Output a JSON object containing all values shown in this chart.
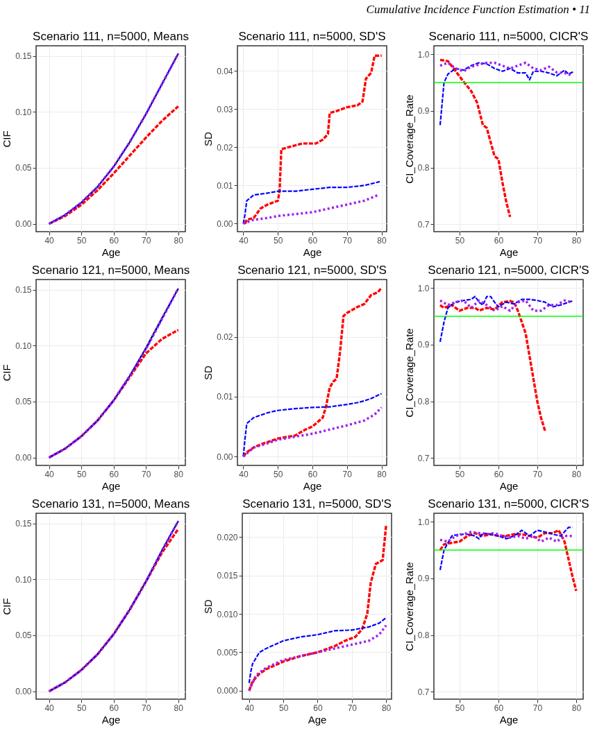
{
  "chart_data": [
    {
      "type": "line",
      "title": "Scenario 111, n=5000, Means",
      "xlabel": "Age",
      "ylabel": "CIF",
      "annotations": [
        "Cumulative Incidence Function Estimation • 11"
      ],
      "xlim": [
        36,
        82.2
      ],
      "xticks": [
        40,
        50,
        60,
        70,
        80
      ],
      "ylim": [
        -0.007,
        0.159
      ],
      "yticks": [
        {
          "value": 0,
          "label": "0.00"
        },
        {
          "value": 0.05,
          "label": "0.05"
        },
        {
          "value": 0.1,
          "label": "0.10"
        },
        {
          "value": 0.15,
          "label": "0.15"
        }
      ],
      "grid": true,
      "series": [
        {
          "color": "#000000",
          "line_style": "solid",
          "x": [
            40,
            45,
            50,
            55,
            60,
            65,
            70,
            75,
            80
          ],
          "values": [
            0,
            0.008,
            0.019,
            0.033,
            0.051,
            0.073,
            0.098,
            0.125,
            0.152
          ]
        },
        {
          "color": "#0000ff",
          "line_style": "dashed",
          "x": [
            40,
            45,
            50,
            55,
            60,
            65,
            70,
            75,
            80
          ],
          "values": [
            0,
            0.008,
            0.019,
            0.033,
            0.051,
            0.073,
            0.098,
            0.125,
            0.152
          ]
        },
        {
          "color": "#a020f0",
          "line_style": "dotted",
          "x": [
            40,
            45,
            50,
            55,
            60,
            65,
            70,
            75,
            80
          ],
          "values": [
            0,
            0.008,
            0.019,
            0.033,
            0.051,
            0.073,
            0.098,
            0.125,
            0.152
          ]
        },
        {
          "color": "#ff0000",
          "line_style": "dashed",
          "x": [
            40,
            45,
            50,
            55,
            60,
            65,
            70,
            75,
            80
          ],
          "values": [
            0,
            0.007,
            0.017,
            0.03,
            0.045,
            0.061,
            0.077,
            0.092,
            0.105
          ]
        }
      ]
    },
    {
      "type": "line",
      "title": "Scenario 111, n=5000, SD'S",
      "xlabel": "Age",
      "ylabel": "SD",
      "xlim": [
        38.3,
        81.5
      ],
      "xticks": [
        40,
        50,
        60,
        70,
        80
      ],
      "ylim": [
        -0.0021,
        0.0466
      ],
      "yticks": [
        {
          "value": 0,
          "label": "0.00"
        },
        {
          "value": 0.01,
          "label": "0.01"
        },
        {
          "value": 0.02,
          "label": "0.02"
        },
        {
          "value": 0.03,
          "label": "0.03"
        },
        {
          "value": 0.04,
          "label": "0.04"
        }
      ],
      "grid": true,
      "series": [
        {
          "color": "#0000ff",
          "line_style": "dashed",
          "x": [
            40,
            40.5,
            41,
            43,
            47,
            50,
            55,
            60,
            65,
            70,
            75,
            79.5
          ],
          "values": [
            0,
            0.0025,
            0.006,
            0.0075,
            0.008,
            0.0085,
            0.0085,
            0.009,
            0.0095,
            0.0095,
            0.01,
            0.011
          ]
        },
        {
          "color": "#a020f0",
          "line_style": "dotted",
          "x": [
            40,
            43,
            47,
            50,
            55,
            60,
            65,
            70,
            75,
            79
          ],
          "values": [
            0,
            0.001,
            0.0015,
            0.002,
            0.0025,
            0.003,
            0.004,
            0.005,
            0.006,
            0.0075
          ]
        },
        {
          "color": "#ff0000",
          "line_style": "dashed",
          "x": [
            40.5,
            41,
            43,
            45,
            47,
            50,
            50.5,
            51,
            53,
            57,
            61,
            63,
            64.5,
            65,
            67,
            70,
            73,
            74.5,
            75.5,
            77,
            78,
            80
          ],
          "values": [
            0,
            0.001,
            0.0015,
            0.004,
            0.005,
            0.006,
            0.0085,
            0.0195,
            0.02,
            0.021,
            0.021,
            0.022,
            0.0235,
            0.029,
            0.0295,
            0.0305,
            0.031,
            0.032,
            0.038,
            0.0395,
            0.044,
            0.044
          ]
        }
      ]
    },
    {
      "type": "line",
      "title": "Scenario 111, n=5000, CICR'S",
      "xlabel": "Age",
      "ylabel": "CI_Coverage_Rate",
      "xlim": [
        43.4,
        81.8
      ],
      "xticks": [
        50,
        60,
        70,
        80
      ],
      "ylim": [
        0.687,
        1.015
      ],
      "yticks": [
        {
          "value": 0.7,
          "label": "0.7"
        },
        {
          "value": 0.8,
          "label": "0.8"
        },
        {
          "value": 0.9,
          "label": "0.9"
        },
        {
          "value": 1,
          "label": "1.0"
        }
      ],
      "grid": true,
      "ref_lines": [
        {
          "axis": "y",
          "value": 0.95,
          "label": null,
          "color": "#00ff00"
        }
      ],
      "series": [
        {
          "color": "#0000ff",
          "line_style": "dashed",
          "x": [
            45,
            46,
            47,
            49,
            51,
            53,
            55,
            57,
            59,
            61,
            63,
            65,
            67,
            68,
            69,
            71,
            73,
            75,
            77,
            78,
            79.5
          ],
          "values": [
            0.875,
            0.95,
            0.965,
            0.975,
            0.972,
            0.98,
            0.985,
            0.983,
            0.975,
            0.97,
            0.975,
            0.967,
            0.967,
            0.955,
            0.97,
            0.97,
            0.967,
            0.962,
            0.972,
            0.965,
            0.97
          ]
        },
        {
          "color": "#a020f0",
          "line_style": "dotted",
          "x": [
            45,
            47,
            49,
            51,
            53,
            55,
            57,
            59,
            61,
            63,
            65,
            67,
            69,
            71,
            73,
            75,
            77,
            78,
            79
          ],
          "values": [
            0.98,
            0.985,
            0.975,
            0.97,
            0.978,
            0.982,
            0.985,
            0.985,
            0.98,
            0.975,
            0.98,
            0.985,
            0.975,
            0.972,
            0.978,
            0.968,
            0.967,
            0.965,
            0.962
          ]
        },
        {
          "color": "#ff0000",
          "line_style": "dashed",
          "x": [
            45,
            47,
            49,
            51,
            53,
            54.5,
            56,
            57,
            59,
            60,
            61,
            62,
            63
          ],
          "values": [
            0.99,
            0.988,
            0.97,
            0.952,
            0.935,
            0.915,
            0.875,
            0.87,
            0.82,
            0.815,
            0.775,
            0.74,
            0.713
          ]
        }
      ]
    },
    {
      "type": "line",
      "title": "Scenario 121, n=5000, Means",
      "xlabel": "Age",
      "ylabel": "CIF",
      "xlim": [
        36,
        82.2
      ],
      "xticks": [
        40,
        50,
        60,
        70,
        80
      ],
      "ylim": [
        -0.007,
        0.159
      ],
      "yticks": [
        {
          "value": 0,
          "label": "0.00"
        },
        {
          "value": 0.05,
          "label": "0.05"
        },
        {
          "value": 0.1,
          "label": "0.10"
        },
        {
          "value": 0.15,
          "label": "0.15"
        }
      ],
      "grid": true,
      "series": [
        {
          "color": "#000000",
          "line_style": "solid",
          "x": [
            40,
            45,
            50,
            55,
            60,
            65,
            70,
            75,
            80
          ],
          "values": [
            0,
            0.008,
            0.019,
            0.033,
            0.051,
            0.073,
            0.098,
            0.125,
            0.151
          ]
        },
        {
          "color": "#0000ff",
          "line_style": "dashed",
          "x": [
            40,
            45,
            50,
            55,
            60,
            65,
            70,
            75,
            80
          ],
          "values": [
            0,
            0.008,
            0.019,
            0.033,
            0.051,
            0.073,
            0.097,
            0.124,
            0.151
          ]
        },
        {
          "color": "#a020f0",
          "line_style": "dotted",
          "x": [
            40,
            45,
            50,
            55,
            60,
            65,
            70,
            75,
            80
          ],
          "values": [
            0,
            0.008,
            0.019,
            0.033,
            0.051,
            0.073,
            0.097,
            0.124,
            0.151
          ]
        },
        {
          "color": "#ff0000",
          "line_style": "dashed",
          "x": [
            40,
            45,
            50,
            55,
            60,
            65,
            70,
            75,
            80
          ],
          "values": [
            0,
            0.008,
            0.019,
            0.033,
            0.051,
            0.072,
            0.093,
            0.106,
            0.114
          ]
        }
      ]
    },
    {
      "type": "line",
      "title": "Scenario 121, n=5000, SD'S",
      "xlabel": "Age",
      "ylabel": "SD",
      "xlim": [
        38.3,
        81.5
      ],
      "xticks": [
        40,
        50,
        60,
        70,
        80
      ],
      "ylim": [
        -0.0015,
        0.0296
      ],
      "yticks": [
        {
          "value": 0,
          "label": "0.00"
        },
        {
          "value": 0.01,
          "label": "0.01"
        },
        {
          "value": 0.02,
          "label": "0.02"
        }
      ],
      "grid": true,
      "series": [
        {
          "color": "#0000ff",
          "line_style": "dashed",
          "x": [
            40,
            40.5,
            41,
            43,
            47,
            50,
            55,
            60,
            65,
            70,
            73,
            75,
            77,
            80
          ],
          "values": [
            0,
            0.003,
            0.0055,
            0.0065,
            0.0073,
            0.0077,
            0.008,
            0.0082,
            0.0083,
            0.0087,
            0.009,
            0.0093,
            0.0097,
            0.0105
          ]
        },
        {
          "color": "#a020f0",
          "line_style": "dotted",
          "x": [
            40,
            43,
            47,
            50,
            55,
            60,
            65,
            70,
            75,
            78,
            80
          ],
          "values": [
            0,
            0.0015,
            0.0022,
            0.0028,
            0.0033,
            0.0038,
            0.0045,
            0.0052,
            0.006,
            0.007,
            0.0082
          ]
        },
        {
          "color": "#ff0000",
          "line_style": "dashed",
          "x": [
            40,
            41,
            43,
            45,
            50,
            55,
            58,
            60,
            62,
            63,
            64,
            65,
            66,
            67,
            68,
            69,
            70,
            73,
            75,
            77,
            79,
            80
          ],
          "values": [
            0,
            0.0007,
            0.0015,
            0.002,
            0.003,
            0.0035,
            0.0045,
            0.005,
            0.006,
            0.0065,
            0.0085,
            0.0115,
            0.0125,
            0.013,
            0.0175,
            0.0235,
            0.024,
            0.025,
            0.0255,
            0.027,
            0.0275,
            0.0282
          ]
        }
      ]
    },
    {
      "type": "line",
      "title": "Scenario 121, n=5000, CICR'S",
      "xlabel": "Age",
      "ylabel": "CI_Coverage_Rate",
      "xlim": [
        43.4,
        81.8
      ],
      "xticks": [
        50,
        60,
        70,
        80
      ],
      "ylim": [
        0.687,
        1.015
      ],
      "yticks": [
        {
          "value": 0.7,
          "label": "0.7"
        },
        {
          "value": 0.8,
          "label": "0.8"
        },
        {
          "value": 0.9,
          "label": "0.9"
        },
        {
          "value": 1,
          "label": "1.0"
        }
      ],
      "grid": true,
      "ref_lines": [
        {
          "axis": "y",
          "value": 0.95,
          "label": null,
          "color": "#00ff00"
        }
      ],
      "series": [
        {
          "color": "#0000ff",
          "line_style": "dashed",
          "x": [
            45,
            46,
            47,
            49,
            51,
            53,
            54,
            55,
            56,
            57,
            58,
            59,
            60,
            62,
            64,
            66,
            68,
            70,
            72,
            74,
            76,
            78,
            79
          ],
          "values": [
            0.905,
            0.94,
            0.965,
            0.975,
            0.978,
            0.98,
            0.985,
            0.975,
            0.97,
            0.985,
            0.985,
            0.975,
            0.967,
            0.975,
            0.972,
            0.98,
            0.98,
            0.978,
            0.975,
            0.967,
            0.97,
            0.975,
            0.977
          ]
        },
        {
          "color": "#a020f0",
          "line_style": "dotted",
          "x": [
            45,
            47,
            49,
            51,
            53,
            55,
            57,
            59,
            61,
            63,
            65,
            67,
            69,
            71,
            73,
            75,
            77,
            79
          ],
          "values": [
            0.978,
            0.97,
            0.975,
            0.978,
            0.965,
            0.978,
            0.97,
            0.96,
            0.968,
            0.96,
            0.975,
            0.978,
            0.96,
            0.96,
            0.97,
            0.97,
            0.978,
            0.975
          ]
        },
        {
          "color": "#ff0000",
          "line_style": "dashed",
          "x": [
            45,
            46,
            48,
            50,
            52,
            54,
            55,
            57,
            59,
            61,
            63,
            64,
            65,
            66,
            67,
            68,
            69,
            70,
            71,
            72
          ],
          "values": [
            0.97,
            0.965,
            0.97,
            0.96,
            0.965,
            0.965,
            0.96,
            0.965,
            0.962,
            0.975,
            0.977,
            0.975,
            0.96,
            0.94,
            0.92,
            0.88,
            0.84,
            0.8,
            0.77,
            0.748
          ]
        }
      ]
    },
    {
      "type": "line",
      "title": "Scenario 131, n=5000, Means",
      "xlabel": "Age",
      "ylabel": "CIF",
      "xlim": [
        36,
        82.2
      ],
      "xticks": [
        40,
        50,
        60,
        70,
        80
      ],
      "ylim": [
        -0.007,
        0.159
      ],
      "yticks": [
        {
          "value": 0,
          "label": "0.00"
        },
        {
          "value": 0.05,
          "label": "0.05"
        },
        {
          "value": 0.1,
          "label": "0.10"
        },
        {
          "value": 0.15,
          "label": "0.15"
        }
      ],
      "grid": true,
      "series": [
        {
          "color": "#000000",
          "line_style": "solid",
          "x": [
            40,
            45,
            50,
            55,
            60,
            65,
            70,
            75,
            80
          ],
          "values": [
            0,
            0.008,
            0.019,
            0.033,
            0.051,
            0.073,
            0.098,
            0.126,
            0.152
          ]
        },
        {
          "color": "#0000ff",
          "line_style": "dashed",
          "x": [
            40,
            45,
            50,
            55,
            60,
            65,
            70,
            75,
            80
          ],
          "values": [
            0,
            0.008,
            0.019,
            0.033,
            0.051,
            0.073,
            0.098,
            0.126,
            0.152
          ]
        },
        {
          "color": "#a020f0",
          "line_style": "dotted",
          "x": [
            40,
            45,
            50,
            55,
            60,
            65,
            70,
            75,
            80
          ],
          "values": [
            0,
            0.008,
            0.019,
            0.033,
            0.051,
            0.073,
            0.098,
            0.126,
            0.152
          ]
        },
        {
          "color": "#ff0000",
          "line_style": "dashed",
          "x": [
            40,
            45,
            50,
            55,
            60,
            65,
            70,
            75,
            80
          ],
          "values": [
            0,
            0.008,
            0.019,
            0.033,
            0.051,
            0.073,
            0.098,
            0.124,
            0.145
          ]
        }
      ]
    },
    {
      "type": "line",
      "title": "Scenario 131, n=5000, SD'S",
      "xlabel": "Age",
      "ylabel": "SD",
      "xlim": [
        38,
        81.6
      ],
      "xticks": [
        40,
        50,
        60,
        70,
        80
      ],
      "ylim": [
        -0.0011,
        0.0231
      ],
      "yticks": [
        {
          "value": 0,
          "label": "0.000"
        },
        {
          "value": 0.005,
          "label": "0.005"
        },
        {
          "value": 0.01,
          "label": "0.010"
        },
        {
          "value": 0.015,
          "label": "0.015"
        },
        {
          "value": 0.02,
          "label": "0.020"
        }
      ],
      "grid": true,
      "series": [
        {
          "color": "#0000ff",
          "line_style": "dashed",
          "x": [
            40,
            40.5,
            41,
            43,
            45,
            50,
            55,
            60,
            65,
            70,
            75,
            78,
            80
          ],
          "values": [
            0.001,
            0.0025,
            0.0035,
            0.005,
            0.0055,
            0.0065,
            0.007,
            0.0073,
            0.0078,
            0.0079,
            0.0083,
            0.0088,
            0.0095
          ]
        },
        {
          "color": "#a020f0",
          "line_style": "dotted",
          "x": [
            40,
            42,
            45,
            50,
            55,
            60,
            65,
            70,
            75,
            78,
            80
          ],
          "values": [
            0,
            0.002,
            0.003,
            0.004,
            0.0045,
            0.005,
            0.0055,
            0.006,
            0.0065,
            0.0073,
            0.0085
          ]
        },
        {
          "color": "#ff0000",
          "line_style": "dashed",
          "x": [
            40,
            41,
            43,
            45,
            50,
            55,
            60,
            65,
            68,
            71,
            73,
            74.5,
            75.5,
            77,
            79,
            80
          ],
          "values": [
            0,
            0.0012,
            0.0022,
            0.0028,
            0.0038,
            0.0045,
            0.005,
            0.0058,
            0.0065,
            0.007,
            0.008,
            0.01,
            0.014,
            0.0165,
            0.017,
            0.0215
          ]
        }
      ]
    },
    {
      "type": "line",
      "title": "Scenario 131, n=5000, CICR'S",
      "xlabel": "Age",
      "ylabel": "CI_Coverage_Rate",
      "xlim": [
        43.4,
        81.8
      ],
      "xticks": [
        50,
        60,
        70,
        80
      ],
      "ylim": [
        0.687,
        1.015
      ],
      "yticks": [
        {
          "value": 0.7,
          "label": "0.7"
        },
        {
          "value": 0.8,
          "label": "0.8"
        },
        {
          "value": 0.9,
          "label": "0.9"
        },
        {
          "value": 1,
          "label": "1.0"
        }
      ],
      "grid": true,
      "ref_lines": [
        {
          "axis": "y",
          "value": 0.95,
          "label": null,
          "color": "#00ff00"
        }
      ],
      "series": [
        {
          "color": "#0000ff",
          "line_style": "dashed",
          "x": [
            45,
            46,
            48,
            50,
            52,
            54,
            55,
            56,
            58,
            60,
            62,
            64,
            65,
            66,
            68,
            70,
            72,
            74,
            76,
            78,
            79
          ],
          "values": [
            0.915,
            0.95,
            0.975,
            0.978,
            0.978,
            0.975,
            0.97,
            0.98,
            0.978,
            0.975,
            0.97,
            0.975,
            0.98,
            0.985,
            0.975,
            0.985,
            0.982,
            0.978,
            0.975,
            0.99,
            0.99
          ]
        },
        {
          "color": "#a020f0",
          "line_style": "dotted",
          "x": [
            45,
            47,
            49,
            51,
            53,
            55,
            57,
            59,
            61,
            63,
            65,
            67,
            69,
            71,
            73,
            75,
            77,
            79
          ],
          "values": [
            0.968,
            0.965,
            0.975,
            0.978,
            0.982,
            0.98,
            0.978,
            0.98,
            0.975,
            0.972,
            0.975,
            0.97,
            0.975,
            0.965,
            0.972,
            0.965,
            0.975,
            0.975
          ]
        },
        {
          "color": "#ff0000",
          "line_style": "dashed",
          "x": [
            45,
            46,
            48,
            50,
            52,
            54,
            56,
            58,
            60,
            62,
            64,
            66,
            68,
            70,
            72,
            74,
            75.5,
            77,
            78,
            79,
            80
          ],
          "values": [
            0.95,
            0.96,
            0.963,
            0.965,
            0.975,
            0.98,
            0.975,
            0.978,
            0.975,
            0.975,
            0.978,
            0.978,
            0.975,
            0.972,
            0.98,
            0.98,
            0.985,
            0.965,
            0.935,
            0.905,
            0.878
          ]
        }
      ]
    }
  ]
}
